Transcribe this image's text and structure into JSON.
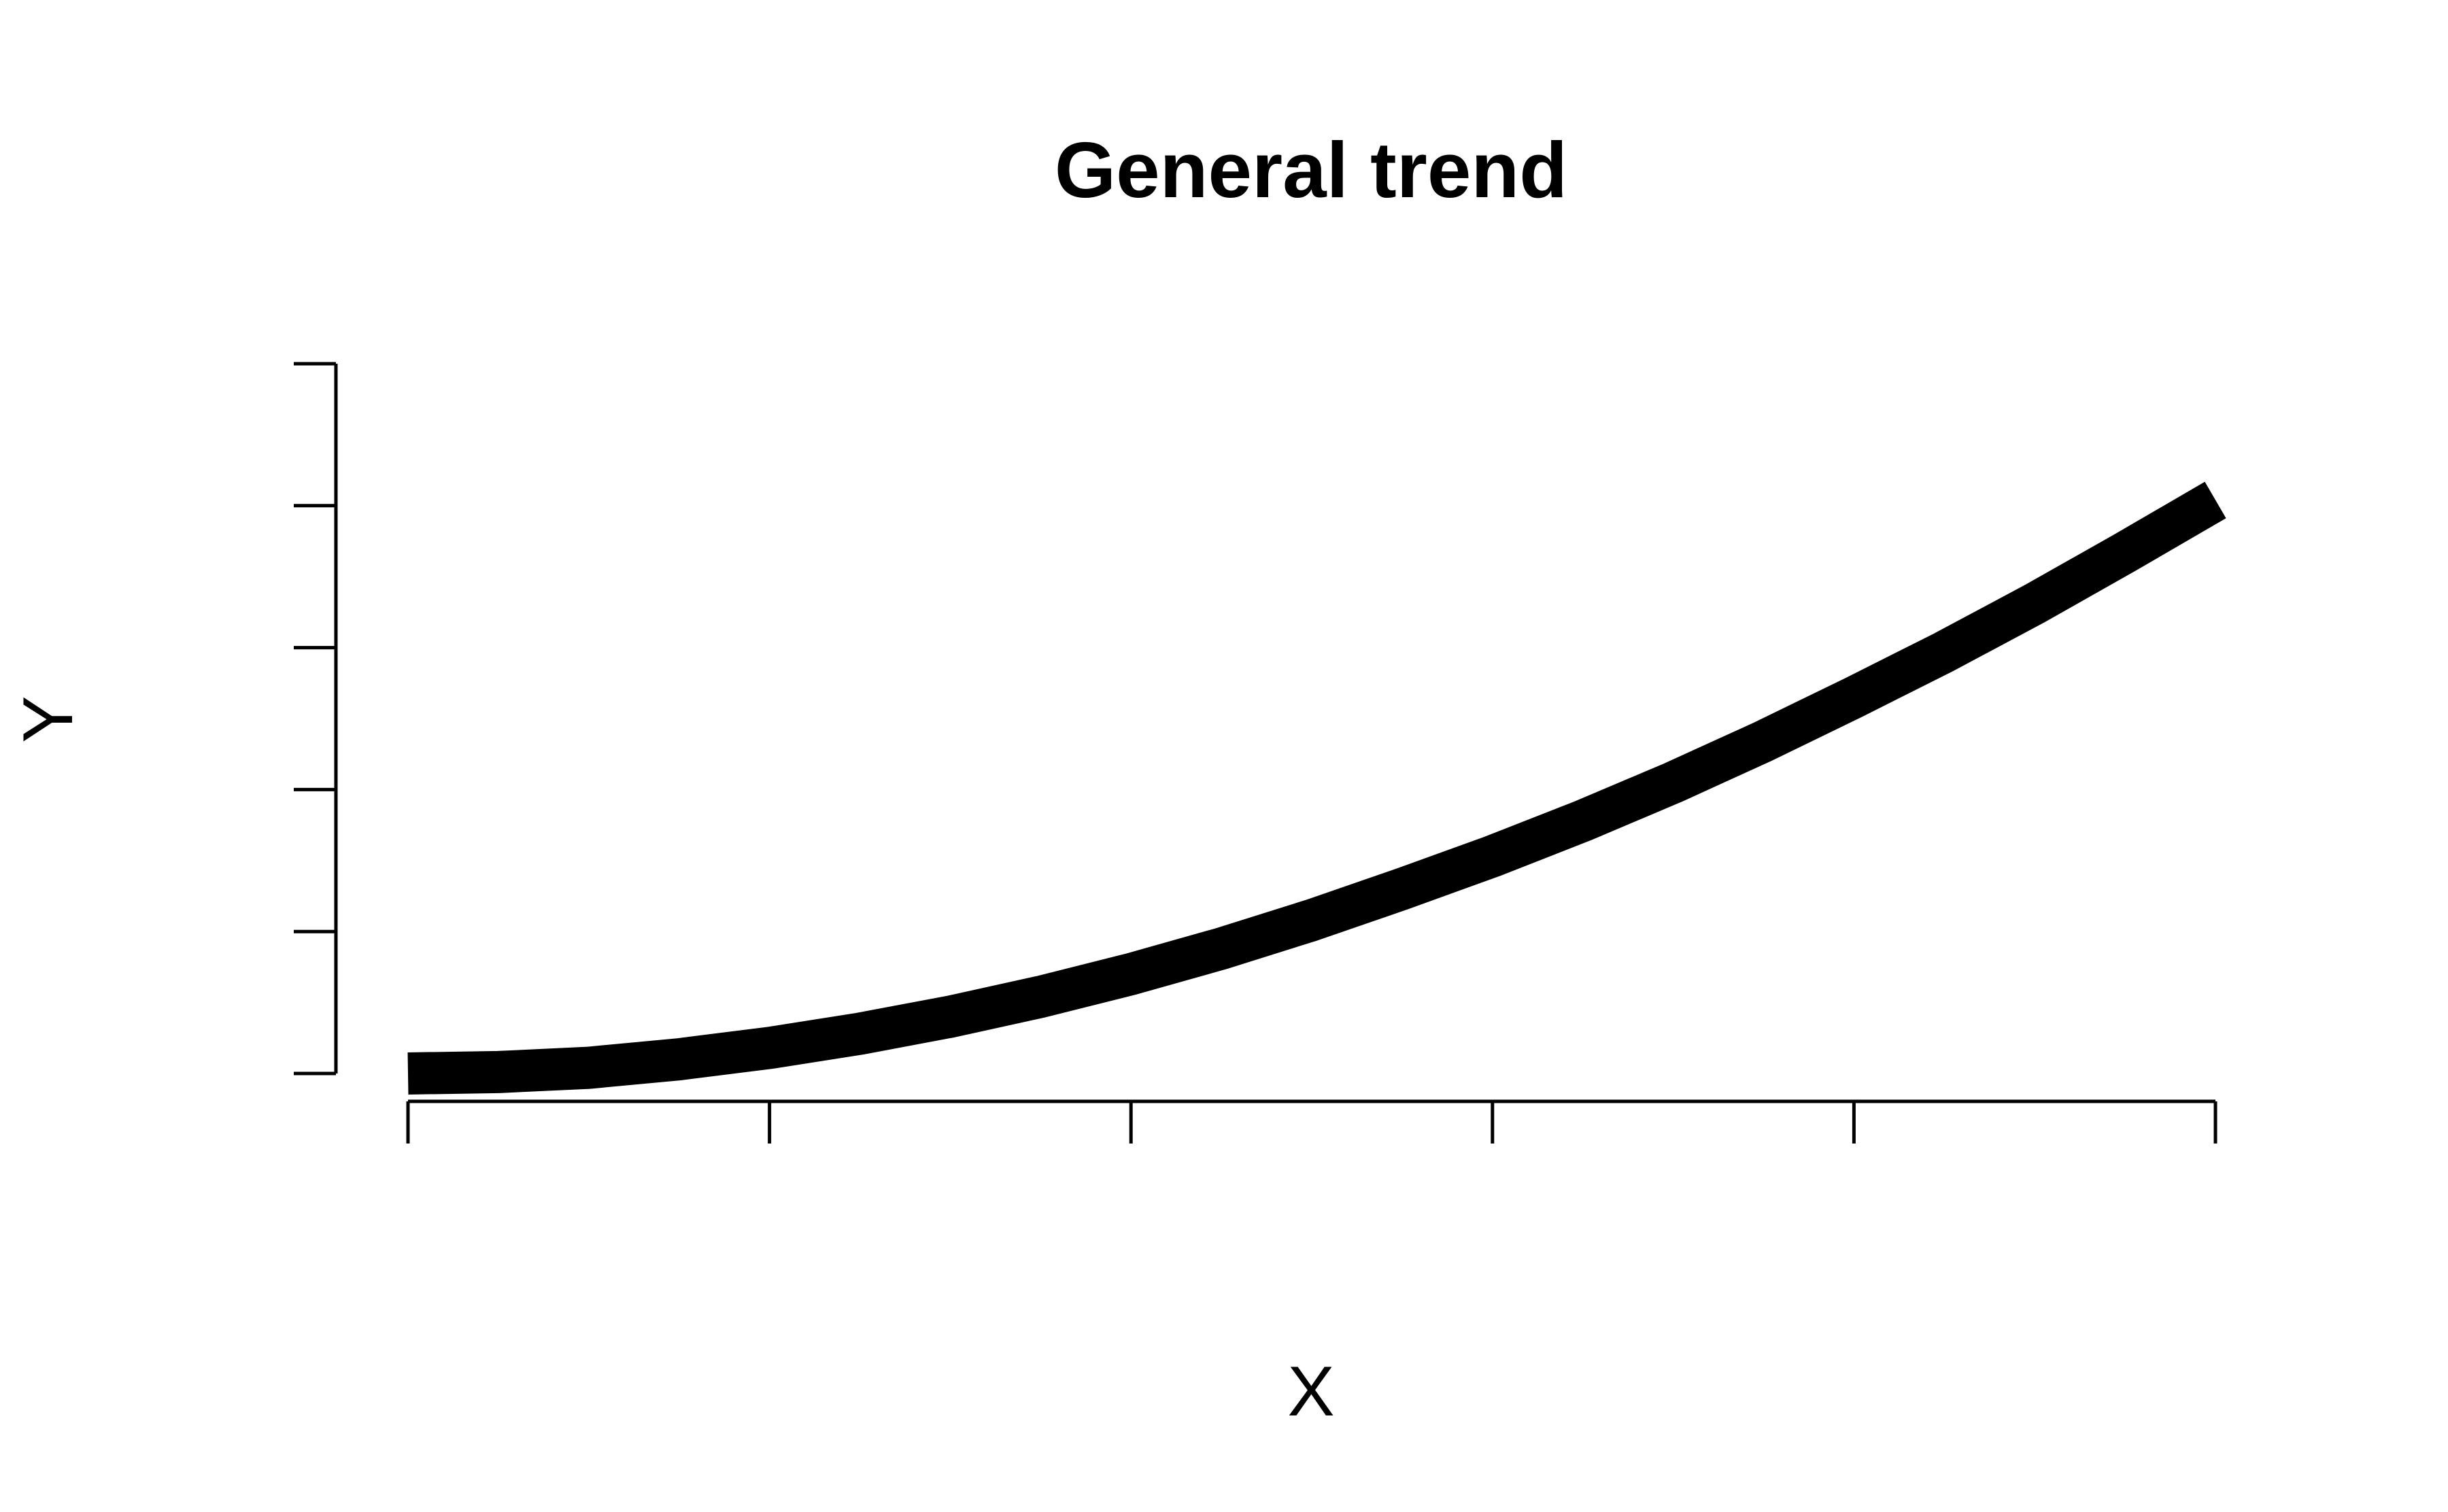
{
  "chart_data": {
    "type": "line",
    "title": "General trend",
    "xlabel": "X",
    "ylabel": "Y",
    "xlim": [
      0,
      5
    ],
    "ylim": [
      0,
      5
    ],
    "x_ticks": [
      0,
      1,
      2,
      3,
      4,
      5
    ],
    "y_ticks": [
      0,
      1,
      2,
      3,
      4,
      5
    ],
    "tick_labels_shown": false,
    "grid": false,
    "legend": false,
    "series": [
      {
        "x": [
          0,
          0.25,
          0.5,
          0.75,
          1,
          1.25,
          1.5,
          1.75,
          2,
          2.25,
          2.5,
          2.75,
          3,
          3.25,
          3.5,
          3.75,
          4,
          4.25,
          4.5,
          4.75,
          5
        ],
        "y": [
          0.0,
          0.01,
          0.04,
          0.1,
          0.18,
          0.28,
          0.4,
          0.54,
          0.7,
          0.88,
          1.08,
          1.3,
          1.53,
          1.78,
          2.05,
          2.34,
          2.65,
          2.97,
          3.31,
          3.67,
          4.04
        ],
        "color": "#000000"
      }
    ]
  }
}
